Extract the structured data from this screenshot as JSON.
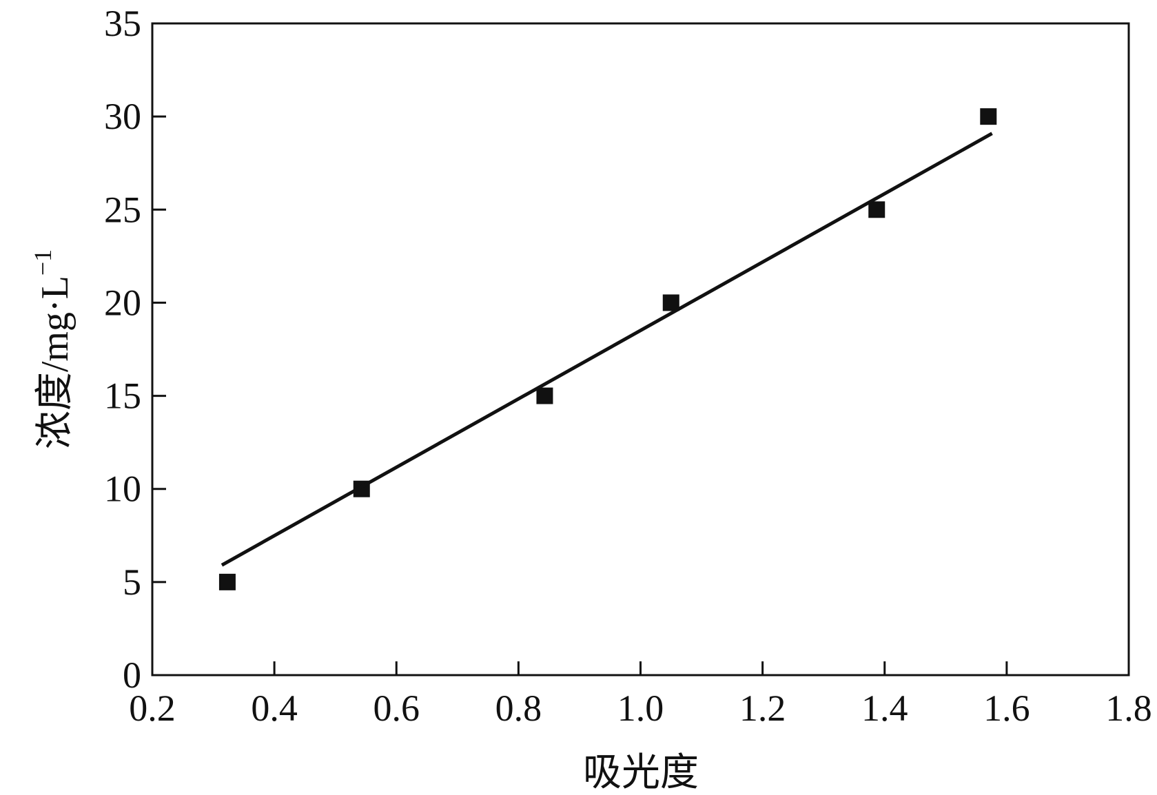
{
  "chart_data": {
    "type": "scatter",
    "xlabel": "吸光度",
    "ylabel": "浓度/mg·L",
    "ylabel_sup": "−1",
    "xlim": [
      0.2,
      1.8
    ],
    "xticks": [
      0.2,
      0.4,
      0.6,
      0.8,
      {
        "value": 1,
        "label": "1.0"
      },
      1.2,
      1.4,
      1.6,
      1.8
    ],
    "ylim": [
      0,
      35
    ],
    "yticks": [
      0,
      5,
      10,
      15,
      20,
      25,
      30,
      35
    ],
    "series": [
      {
        "type": "scatter",
        "color": "#111111",
        "x": [
          0.323,
          0.543,
          0.843,
          1.05,
          1.387,
          1.57
        ],
        "values": [
          5,
          10,
          15,
          20,
          25,
          30
        ]
      },
      {
        "type": "line",
        "color": "#111111",
        "x": [
          0.314,
          1.576
        ],
        "values": [
          5.91,
          29.09
        ]
      }
    ]
  }
}
